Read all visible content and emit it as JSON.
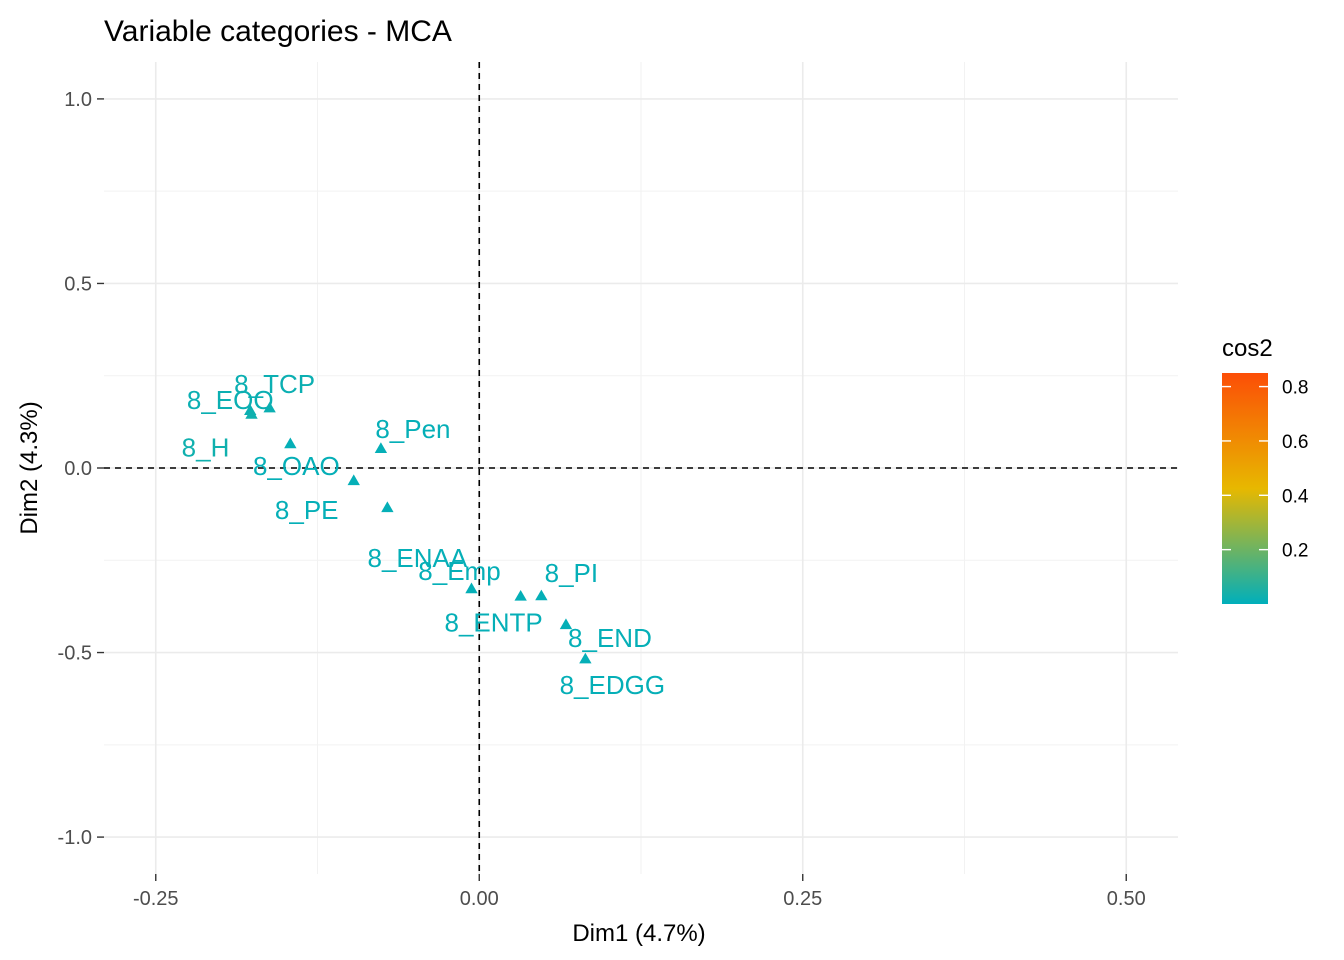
{
  "chart_data": {
    "type": "scatter",
    "title": "Variable categories - MCA",
    "xlabel": "Dim1 (4.7%)",
    "ylabel": "Dim2 (4.3%)",
    "xlim": [
      -0.29,
      0.54
    ],
    "ylim": [
      -1.1,
      1.1
    ],
    "x_ticks": [
      -0.25,
      0.0,
      0.25,
      0.5
    ],
    "x_tick_labels": [
      "-0.25",
      "0.00",
      "0.25",
      "0.50"
    ],
    "y_ticks": [
      -1.0,
      -0.5,
      0.0,
      0.5,
      1.0
    ],
    "y_tick_labels": [
      "-1.0",
      "-0.5",
      "0.0",
      "0.5",
      "1.0"
    ],
    "grid": true,
    "reference_lines": {
      "x": 0,
      "y": 0,
      "style": "dashed"
    },
    "legend": {
      "title": "cos2",
      "position": "right",
      "range": [
        0.0,
        0.85
      ],
      "ticks": [
        0.2,
        0.4,
        0.6,
        0.8
      ],
      "tick_labels": [
        "0.2",
        "0.4",
        "0.6",
        "0.8"
      ],
      "colors": [
        "#00AFBB",
        "#E7B800",
        "#FC4E07"
      ]
    },
    "points": [
      {
        "label": "8_EOO",
        "x": -0.177,
        "y": 0.155,
        "cos2": 0.02
      },
      {
        "label": "8_TCP",
        "x": -0.162,
        "y": 0.162,
        "cos2": 0.02
      },
      {
        "label": "8_H",
        "x": -0.176,
        "y": 0.145,
        "cos2": 0.03
      },
      {
        "label": "8_Pen",
        "x": -0.076,
        "y": 0.052,
        "cos2": 0.01
      },
      {
        "label": "8_OAO",
        "x": -0.146,
        "y": 0.065,
        "cos2": 0.01
      },
      {
        "label": "8_PE",
        "x": -0.097,
        "y": -0.035,
        "cos2": 0.01
      },
      {
        "label": "8_ENAA",
        "x": -0.071,
        "y": -0.108,
        "cos2": 0.01
      },
      {
        "label": "8_Emp",
        "x": -0.006,
        "y": -0.328,
        "cos2": 0.01
      },
      {
        "label": "8_PI",
        "x": 0.048,
        "y": -0.347,
        "cos2": 0.01
      },
      {
        "label": "8_ENTP",
        "x": 0.032,
        "y": -0.348,
        "cos2": 0.01
      },
      {
        "label": "8_END",
        "x": 0.067,
        "y": -0.425,
        "cos2": 0.01
      },
      {
        "label": "8_EDGG",
        "x": 0.082,
        "y": -0.518,
        "cos2": 0.01
      }
    ]
  }
}
